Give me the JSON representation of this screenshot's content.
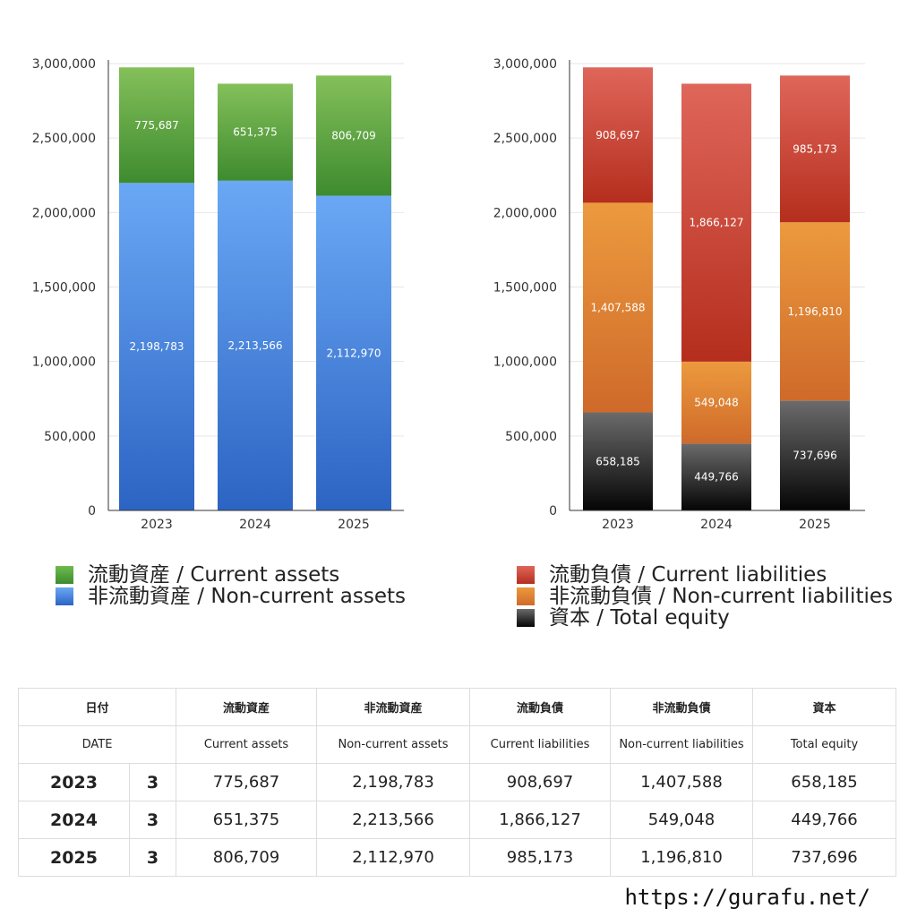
{
  "chart_data": [
    {
      "type": "bar",
      "stacked": true,
      "categories": [
        "2023",
        "2024",
        "2025"
      ],
      "ylim": [
        0,
        3000000
      ],
      "yticks": [
        "0",
        "500,000",
        "1,000,000",
        "1,500,000",
        "2,000,000",
        "2,500,000",
        "3,000,000"
      ],
      "grid": true,
      "legend_position": "bottom",
      "series": [
        {
          "name": "非流動資産 / Non-current assets",
          "values": [
            2198783,
            2213566,
            2112970
          ],
          "labels": [
            "2,198,783",
            "2,213,566",
            "2,112,970"
          ],
          "color_top": "#6aa8f5",
          "color_bottom": "#2c64c3"
        },
        {
          "name": "流動資産 / Current assets",
          "values": [
            775687,
            651375,
            806709
          ],
          "labels": [
            "775,687",
            "651,375",
            "806,709"
          ],
          "color_top": "#84c05a",
          "color_bottom": "#3e8b2f"
        }
      ]
    },
    {
      "type": "bar",
      "stacked": true,
      "categories": [
        "2023",
        "2024",
        "2025"
      ],
      "ylim": [
        0,
        3000000
      ],
      "yticks": [
        "0",
        "500,000",
        "1,000,000",
        "1,500,000",
        "2,000,000",
        "2,500,000",
        "3,000,000"
      ],
      "grid": true,
      "legend_position": "bottom",
      "series": [
        {
          "name": "資本 / Total equity",
          "values": [
            658185,
            449766,
            737696
          ],
          "labels": [
            "658,185",
            "449,766",
            "737,696"
          ],
          "color_top": "#6b6b6b",
          "color_bottom": "#050505"
        },
        {
          "name": "非流動負債 / Non-current liabilities",
          "values": [
            1407588,
            549048,
            1196810
          ],
          "labels": [
            "1,407,588",
            "549,048",
            "1,196,810"
          ],
          "color_top": "#ec9a3e",
          "color_bottom": "#cf6a2a"
        },
        {
          "name": "流動負債 / Current liabilities",
          "values": [
            908697,
            1866127,
            985173
          ],
          "labels": [
            "908,697",
            "1,866,127",
            "985,173"
          ],
          "color_top": "#df665a",
          "color_bottom": "#b52e1d"
        }
      ]
    }
  ],
  "legends": {
    "left": [
      {
        "label": "流動資産 / Current assets",
        "color": "#55a23d"
      },
      {
        "label": "非流動資産 / Non-current assets",
        "color": "#4a8ae0"
      }
    ],
    "right": [
      {
        "label": "流動負債 / Current liabilities",
        "color": "#cc4535"
      },
      {
        "label": "非流動負債 / Non-current liabilities",
        "color": "#e2873a"
      },
      {
        "label": "資本 / Total equity",
        "color": "#333333"
      }
    ]
  },
  "table": {
    "header_jp": {
      "date": "日付",
      "ca": "流動資産",
      "nca": "非流動資産",
      "cl": "流動負債",
      "ncl": "非流動負債",
      "eq": "資本"
    },
    "header_en": {
      "date": "DATE",
      "ca": "Current assets",
      "nca": "Non-current assets",
      "cl": "Current liabilities",
      "ncl": "Non-current liabilities",
      "eq": "Total equity"
    },
    "rows": [
      {
        "year": "2023",
        "month": "3",
        "ca": "775,687",
        "nca": "2,198,783",
        "cl": "908,697",
        "ncl": "1,407,588",
        "eq": "658,185"
      },
      {
        "year": "2024",
        "month": "3",
        "ca": "651,375",
        "nca": "2,213,566",
        "cl": "1,866,127",
        "ncl": "549,048",
        "eq": "449,766"
      },
      {
        "year": "2025",
        "month": "3",
        "ca": "806,709",
        "nca": "2,112,970",
        "cl": "985,173",
        "ncl": "1,196,810",
        "eq": "737,696"
      }
    ]
  },
  "footer": {
    "url": "https://gurafu.net/"
  }
}
